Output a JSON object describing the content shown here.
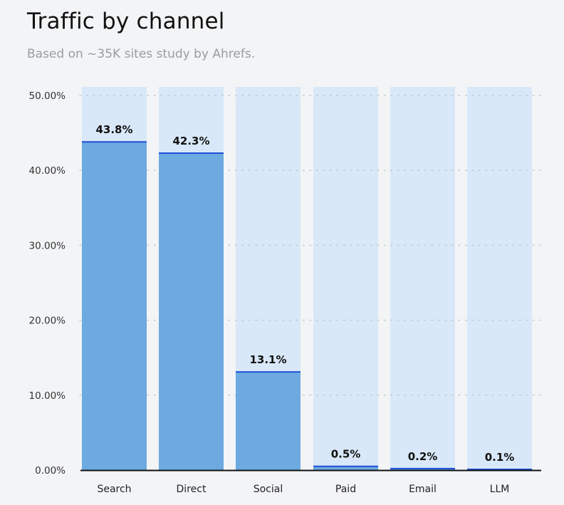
{
  "chart_data": {
    "type": "bar",
    "title": "Traffic by channel",
    "subtitle": "Based on ~35K sites study by Ahrefs.",
    "categories": [
      "Search",
      "Direct",
      "Social",
      "Paid",
      "Email",
      "LLM"
    ],
    "values": [
      43.8,
      42.3,
      13.1,
      0.5,
      0.2,
      0.1
    ],
    "data_labels": [
      "43.8%",
      "42.3%",
      "13.1%",
      "0.5%",
      "0.2%",
      "0.1%"
    ],
    "ylim": [
      0,
      50
    ],
    "yticks": [
      0,
      10,
      20,
      30,
      40,
      50
    ],
    "ytick_labels": [
      "0.00%",
      "10.00%",
      "20.00%",
      "30.00%",
      "40.00%",
      "50.00%"
    ],
    "xlabel": "",
    "ylabel": "",
    "grid": true,
    "colors": {
      "bar": "#6caadf",
      "bar_background": "#d8e8f8",
      "bar_top": "#1f4fd8",
      "grid": "#c4c7cc",
      "axis": "#111111"
    }
  }
}
